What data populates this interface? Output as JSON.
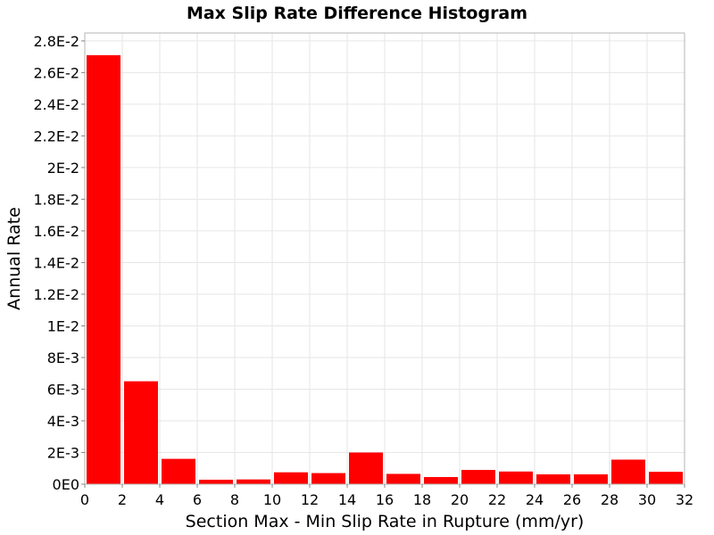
{
  "chart_data": {
    "type": "bar",
    "title": "Max Slip Rate Difference Histogram",
    "xlabel": "Section Max - Min Slip Rate in Rupture (mm/yr)",
    "ylabel": "Annual Rate",
    "xlim": [
      0,
      32
    ],
    "ylim": [
      0,
      0.0285
    ],
    "x_ticks": [
      0,
      2,
      4,
      6,
      8,
      10,
      12,
      14,
      16,
      18,
      20,
      22,
      24,
      26,
      28,
      30,
      32
    ],
    "x_tick_labels": [
      "0",
      "2",
      "4",
      "6",
      "8",
      "10",
      "12",
      "14",
      "16",
      "18",
      "20",
      "22",
      "24",
      "26",
      "28",
      "30",
      "32"
    ],
    "y_ticks": [
      0,
      0.002,
      0.004,
      0.006,
      0.008,
      0.01,
      0.012,
      0.014,
      0.016,
      0.018,
      0.02,
      0.022,
      0.024,
      0.026,
      0.028
    ],
    "y_tick_labels": [
      "0E0",
      "2E-3",
      "4E-3",
      "6E-3",
      "8E-3",
      "1E-2",
      "1.2E-2",
      "1.4E-2",
      "1.6E-2",
      "1.8E-2",
      "2E-2",
      "2.2E-2",
      "2.4E-2",
      "2.6E-2",
      "2.8E-2"
    ],
    "bin_width": 2,
    "bins": [
      1,
      3,
      5,
      7,
      9,
      11,
      13,
      15,
      17,
      19,
      21,
      23,
      25,
      27,
      29,
      31
    ],
    "values": [
      0.0271,
      0.0065,
      0.0016,
      0.00028,
      0.0003,
      0.00075,
      0.0007,
      0.002,
      0.00065,
      0.00045,
      0.0009,
      0.0008,
      0.00062,
      0.00062,
      0.00155,
      0.00078
    ],
    "bar_color": "#ff0000",
    "grid": true
  }
}
